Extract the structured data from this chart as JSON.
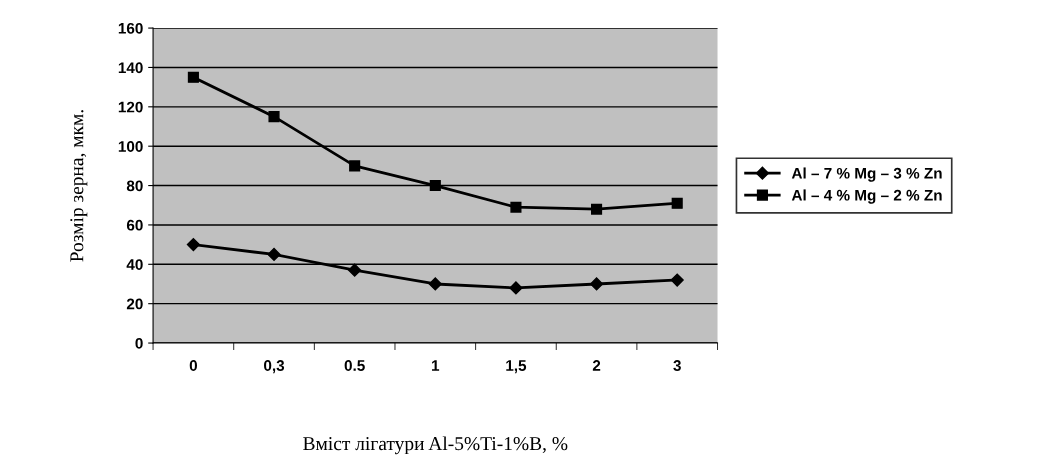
{
  "chart_data": {
    "type": "line",
    "xlabel": "Вміст лігатури Al-5%Ti-1%B, %",
    "ylabel": "Розмір зерна, мкм.",
    "categories": [
      "0",
      "0,3",
      "0.5",
      "1",
      "1,5",
      "2",
      "3"
    ],
    "series": [
      {
        "name": "Al – 7 % Mg – 3 % Zn",
        "color": "#000000",
        "marker": "diamond",
        "values": [
          50,
          45,
          37,
          30,
          28,
          30,
          32
        ]
      },
      {
        "name": "Al – 4 % Mg – 2 % Zn",
        "color": "#000000",
        "marker": "square",
        "values": [
          135,
          115,
          90,
          80,
          69,
          68,
          71
        ]
      }
    ],
    "ylim": [
      0,
      160
    ],
    "yticks": [
      0,
      20,
      40,
      60,
      80,
      100,
      120,
      140,
      160
    ],
    "grid": "y",
    "legend": "right",
    "line_style": "solid"
  }
}
